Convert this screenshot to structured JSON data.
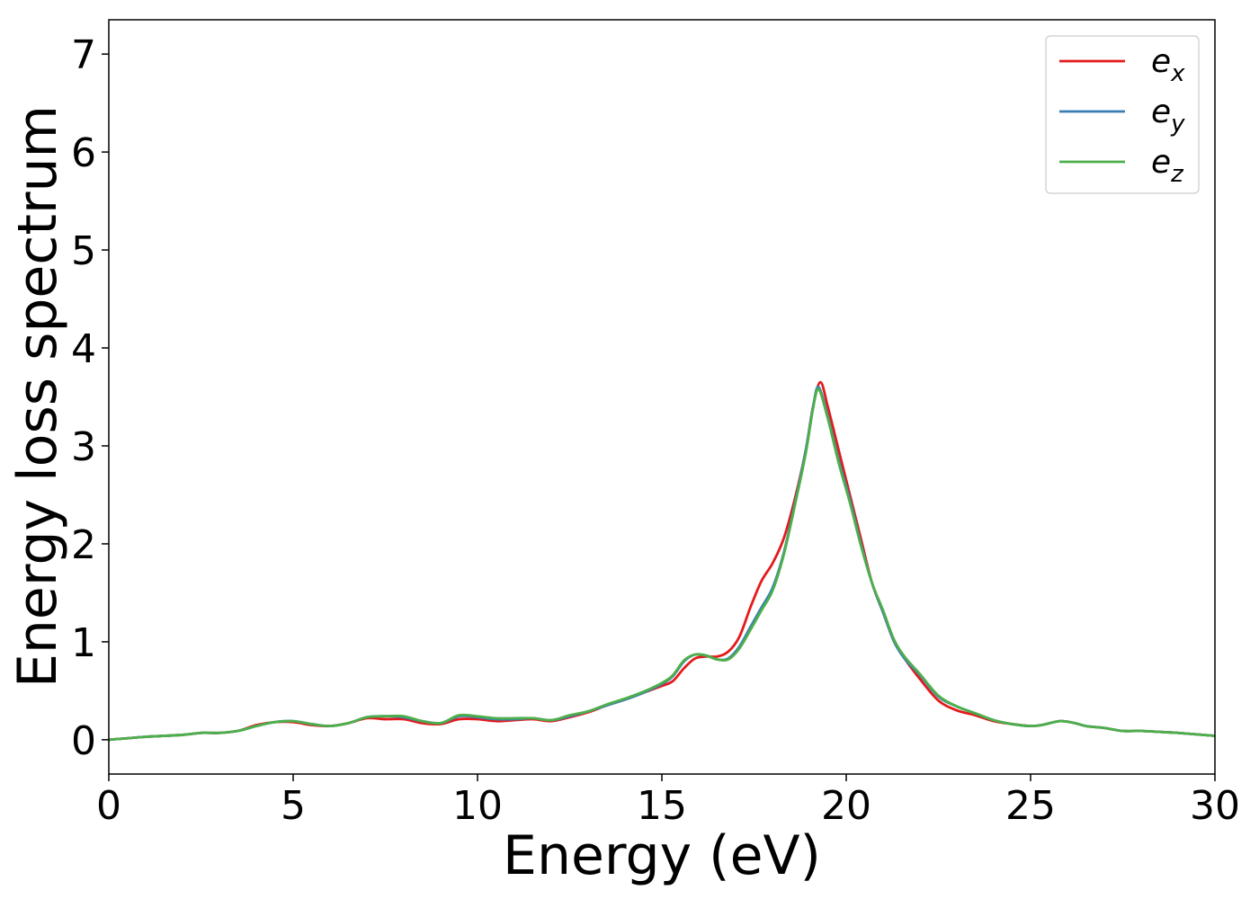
{
  "chart_data": {
    "type": "line",
    "title": "",
    "xlabel": "Energy (eV)",
    "ylabel": "Energy loss spectrum",
    "xlim": [
      0,
      30
    ],
    "ylim": [
      -0.35,
      7.35
    ],
    "xticks": [
      0,
      5,
      10,
      15,
      20,
      25,
      30
    ],
    "yticks": [
      0,
      1,
      2,
      3,
      4,
      5,
      6,
      7
    ],
    "grid": false,
    "legend_position": "top-right",
    "series": [
      {
        "name": "e_x",
        "legend_base": "e",
        "legend_sub": "x",
        "color": "#e41a1c",
        "points": [
          [
            0,
            0.0
          ],
          [
            1,
            0.03
          ],
          [
            2,
            0.05
          ],
          [
            2.5,
            0.07
          ],
          [
            3,
            0.07
          ],
          [
            3.5,
            0.09
          ],
          [
            4,
            0.15
          ],
          [
            4.5,
            0.18
          ],
          [
            5,
            0.18
          ],
          [
            5.5,
            0.15
          ],
          [
            6,
            0.14
          ],
          [
            6.5,
            0.17
          ],
          [
            7,
            0.22
          ],
          [
            7.5,
            0.21
          ],
          [
            8,
            0.21
          ],
          [
            8.5,
            0.17
          ],
          [
            9,
            0.16
          ],
          [
            9.5,
            0.21
          ],
          [
            10,
            0.21
          ],
          [
            10.5,
            0.19
          ],
          [
            11,
            0.2
          ],
          [
            11.5,
            0.21
          ],
          [
            12,
            0.19
          ],
          [
            12.5,
            0.23
          ],
          [
            13,
            0.28
          ],
          [
            13.5,
            0.35
          ],
          [
            14,
            0.41
          ],
          [
            14.5,
            0.48
          ],
          [
            15,
            0.55
          ],
          [
            15.3,
            0.6
          ],
          [
            15.6,
            0.73
          ],
          [
            15.9,
            0.83
          ],
          [
            16.2,
            0.85
          ],
          [
            16.5,
            0.85
          ],
          [
            16.8,
            0.9
          ],
          [
            17.1,
            1.05
          ],
          [
            17.4,
            1.35
          ],
          [
            17.7,
            1.62
          ],
          [
            18.0,
            1.8
          ],
          [
            18.3,
            2.05
          ],
          [
            18.6,
            2.45
          ],
          [
            18.9,
            2.95
          ],
          [
            19.1,
            3.4
          ],
          [
            19.3,
            3.65
          ],
          [
            19.5,
            3.4
          ],
          [
            19.8,
            2.95
          ],
          [
            20.1,
            2.5
          ],
          [
            20.4,
            2.05
          ],
          [
            20.7,
            1.6
          ],
          [
            21.0,
            1.3
          ],
          [
            21.3,
            1.0
          ],
          [
            21.6,
            0.82
          ],
          [
            22.0,
            0.62
          ],
          [
            22.5,
            0.4
          ],
          [
            23,
            0.3
          ],
          [
            23.5,
            0.25
          ],
          [
            24,
            0.19
          ],
          [
            24.5,
            0.16
          ],
          [
            25,
            0.14
          ],
          [
            25.3,
            0.15
          ],
          [
            25.8,
            0.19
          ],
          [
            26.2,
            0.17
          ],
          [
            26.5,
            0.14
          ],
          [
            27,
            0.12
          ],
          [
            27.5,
            0.09
          ],
          [
            28,
            0.09
          ],
          [
            28.5,
            0.08
          ],
          [
            29,
            0.07
          ],
          [
            30,
            0.04
          ]
        ]
      },
      {
        "name": "e_y",
        "legend_base": "e",
        "legend_sub": "y",
        "color": "#377eb8",
        "points": [
          [
            0,
            0.0
          ],
          [
            1,
            0.03
          ],
          [
            2,
            0.05
          ],
          [
            2.5,
            0.07
          ],
          [
            3,
            0.07
          ],
          [
            3.5,
            0.09
          ],
          [
            4,
            0.14
          ],
          [
            4.5,
            0.18
          ],
          [
            5,
            0.19
          ],
          [
            5.5,
            0.16
          ],
          [
            6,
            0.14
          ],
          [
            6.5,
            0.17
          ],
          [
            7,
            0.23
          ],
          [
            7.5,
            0.24
          ],
          [
            8,
            0.23
          ],
          [
            8.5,
            0.19
          ],
          [
            9,
            0.17
          ],
          [
            9.5,
            0.24
          ],
          [
            10,
            0.23
          ],
          [
            10.5,
            0.21
          ],
          [
            11,
            0.21
          ],
          [
            11.5,
            0.22
          ],
          [
            12,
            0.2
          ],
          [
            12.5,
            0.24
          ],
          [
            13,
            0.29
          ],
          [
            13.5,
            0.35
          ],
          [
            14,
            0.41
          ],
          [
            14.5,
            0.48
          ],
          [
            15,
            0.57
          ],
          [
            15.3,
            0.65
          ],
          [
            15.6,
            0.8
          ],
          [
            15.9,
            0.87
          ],
          [
            16.2,
            0.86
          ],
          [
            16.5,
            0.82
          ],
          [
            16.8,
            0.83
          ],
          [
            17.1,
            0.95
          ],
          [
            17.4,
            1.15
          ],
          [
            17.7,
            1.35
          ],
          [
            18.0,
            1.55
          ],
          [
            18.3,
            1.9
          ],
          [
            18.6,
            2.4
          ],
          [
            18.9,
            2.95
          ],
          [
            19.1,
            3.4
          ],
          [
            19.25,
            3.6
          ],
          [
            19.5,
            3.3
          ],
          [
            19.8,
            2.85
          ],
          [
            20.1,
            2.45
          ],
          [
            20.4,
            2.0
          ],
          [
            20.7,
            1.6
          ],
          [
            21.0,
            1.3
          ],
          [
            21.3,
            1.0
          ],
          [
            21.6,
            0.82
          ],
          [
            22.0,
            0.66
          ],
          [
            22.5,
            0.44
          ],
          [
            23,
            0.34
          ],
          [
            23.5,
            0.27
          ],
          [
            24,
            0.2
          ],
          [
            24.5,
            0.16
          ],
          [
            25,
            0.14
          ],
          [
            25.3,
            0.15
          ],
          [
            25.8,
            0.19
          ],
          [
            26.2,
            0.17
          ],
          [
            26.5,
            0.14
          ],
          [
            27,
            0.12
          ],
          [
            27.5,
            0.09
          ],
          [
            28,
            0.09
          ],
          [
            28.5,
            0.08
          ],
          [
            29,
            0.07
          ],
          [
            30,
            0.04
          ]
        ]
      },
      {
        "name": "e_z",
        "legend_base": "e",
        "legend_sub": "z",
        "color": "#4daf4a",
        "points": [
          [
            0,
            0.0
          ],
          [
            1,
            0.03
          ],
          [
            2,
            0.05
          ],
          [
            2.5,
            0.07
          ],
          [
            3,
            0.07
          ],
          [
            3.5,
            0.09
          ],
          [
            4,
            0.14
          ],
          [
            4.5,
            0.18
          ],
          [
            5,
            0.19
          ],
          [
            5.5,
            0.16
          ],
          [
            6,
            0.14
          ],
          [
            6.5,
            0.17
          ],
          [
            7,
            0.23
          ],
          [
            7.5,
            0.24
          ],
          [
            8,
            0.24
          ],
          [
            8.5,
            0.19
          ],
          [
            9,
            0.17
          ],
          [
            9.5,
            0.25
          ],
          [
            10,
            0.24
          ],
          [
            10.5,
            0.22
          ],
          [
            11,
            0.22
          ],
          [
            11.5,
            0.22
          ],
          [
            12,
            0.2
          ],
          [
            12.5,
            0.25
          ],
          [
            13,
            0.29
          ],
          [
            13.5,
            0.36
          ],
          [
            14,
            0.42
          ],
          [
            14.5,
            0.49
          ],
          [
            15,
            0.58
          ],
          [
            15.3,
            0.66
          ],
          [
            15.6,
            0.81
          ],
          [
            15.9,
            0.87
          ],
          [
            16.2,
            0.86
          ],
          [
            16.5,
            0.82
          ],
          [
            16.8,
            0.82
          ],
          [
            17.1,
            0.93
          ],
          [
            17.4,
            1.12
          ],
          [
            17.7,
            1.32
          ],
          [
            18.0,
            1.52
          ],
          [
            18.3,
            1.88
          ],
          [
            18.6,
            2.38
          ],
          [
            18.9,
            2.92
          ],
          [
            19.1,
            3.38
          ],
          [
            19.25,
            3.58
          ],
          [
            19.5,
            3.28
          ],
          [
            19.8,
            2.82
          ],
          [
            20.1,
            2.42
          ],
          [
            20.4,
            1.98
          ],
          [
            20.7,
            1.6
          ],
          [
            21.0,
            1.32
          ],
          [
            21.3,
            1.02
          ],
          [
            21.6,
            0.84
          ],
          [
            22.0,
            0.67
          ],
          [
            22.5,
            0.45
          ],
          [
            23,
            0.34
          ],
          [
            23.5,
            0.27
          ],
          [
            24,
            0.2
          ],
          [
            24.5,
            0.16
          ],
          [
            25,
            0.14
          ],
          [
            25.3,
            0.15
          ],
          [
            25.8,
            0.19
          ],
          [
            26.2,
            0.17
          ],
          [
            26.5,
            0.14
          ],
          [
            27,
            0.12
          ],
          [
            27.5,
            0.09
          ],
          [
            28,
            0.09
          ],
          [
            28.5,
            0.08
          ],
          [
            29,
            0.07
          ],
          [
            30,
            0.04
          ]
        ]
      }
    ]
  }
}
